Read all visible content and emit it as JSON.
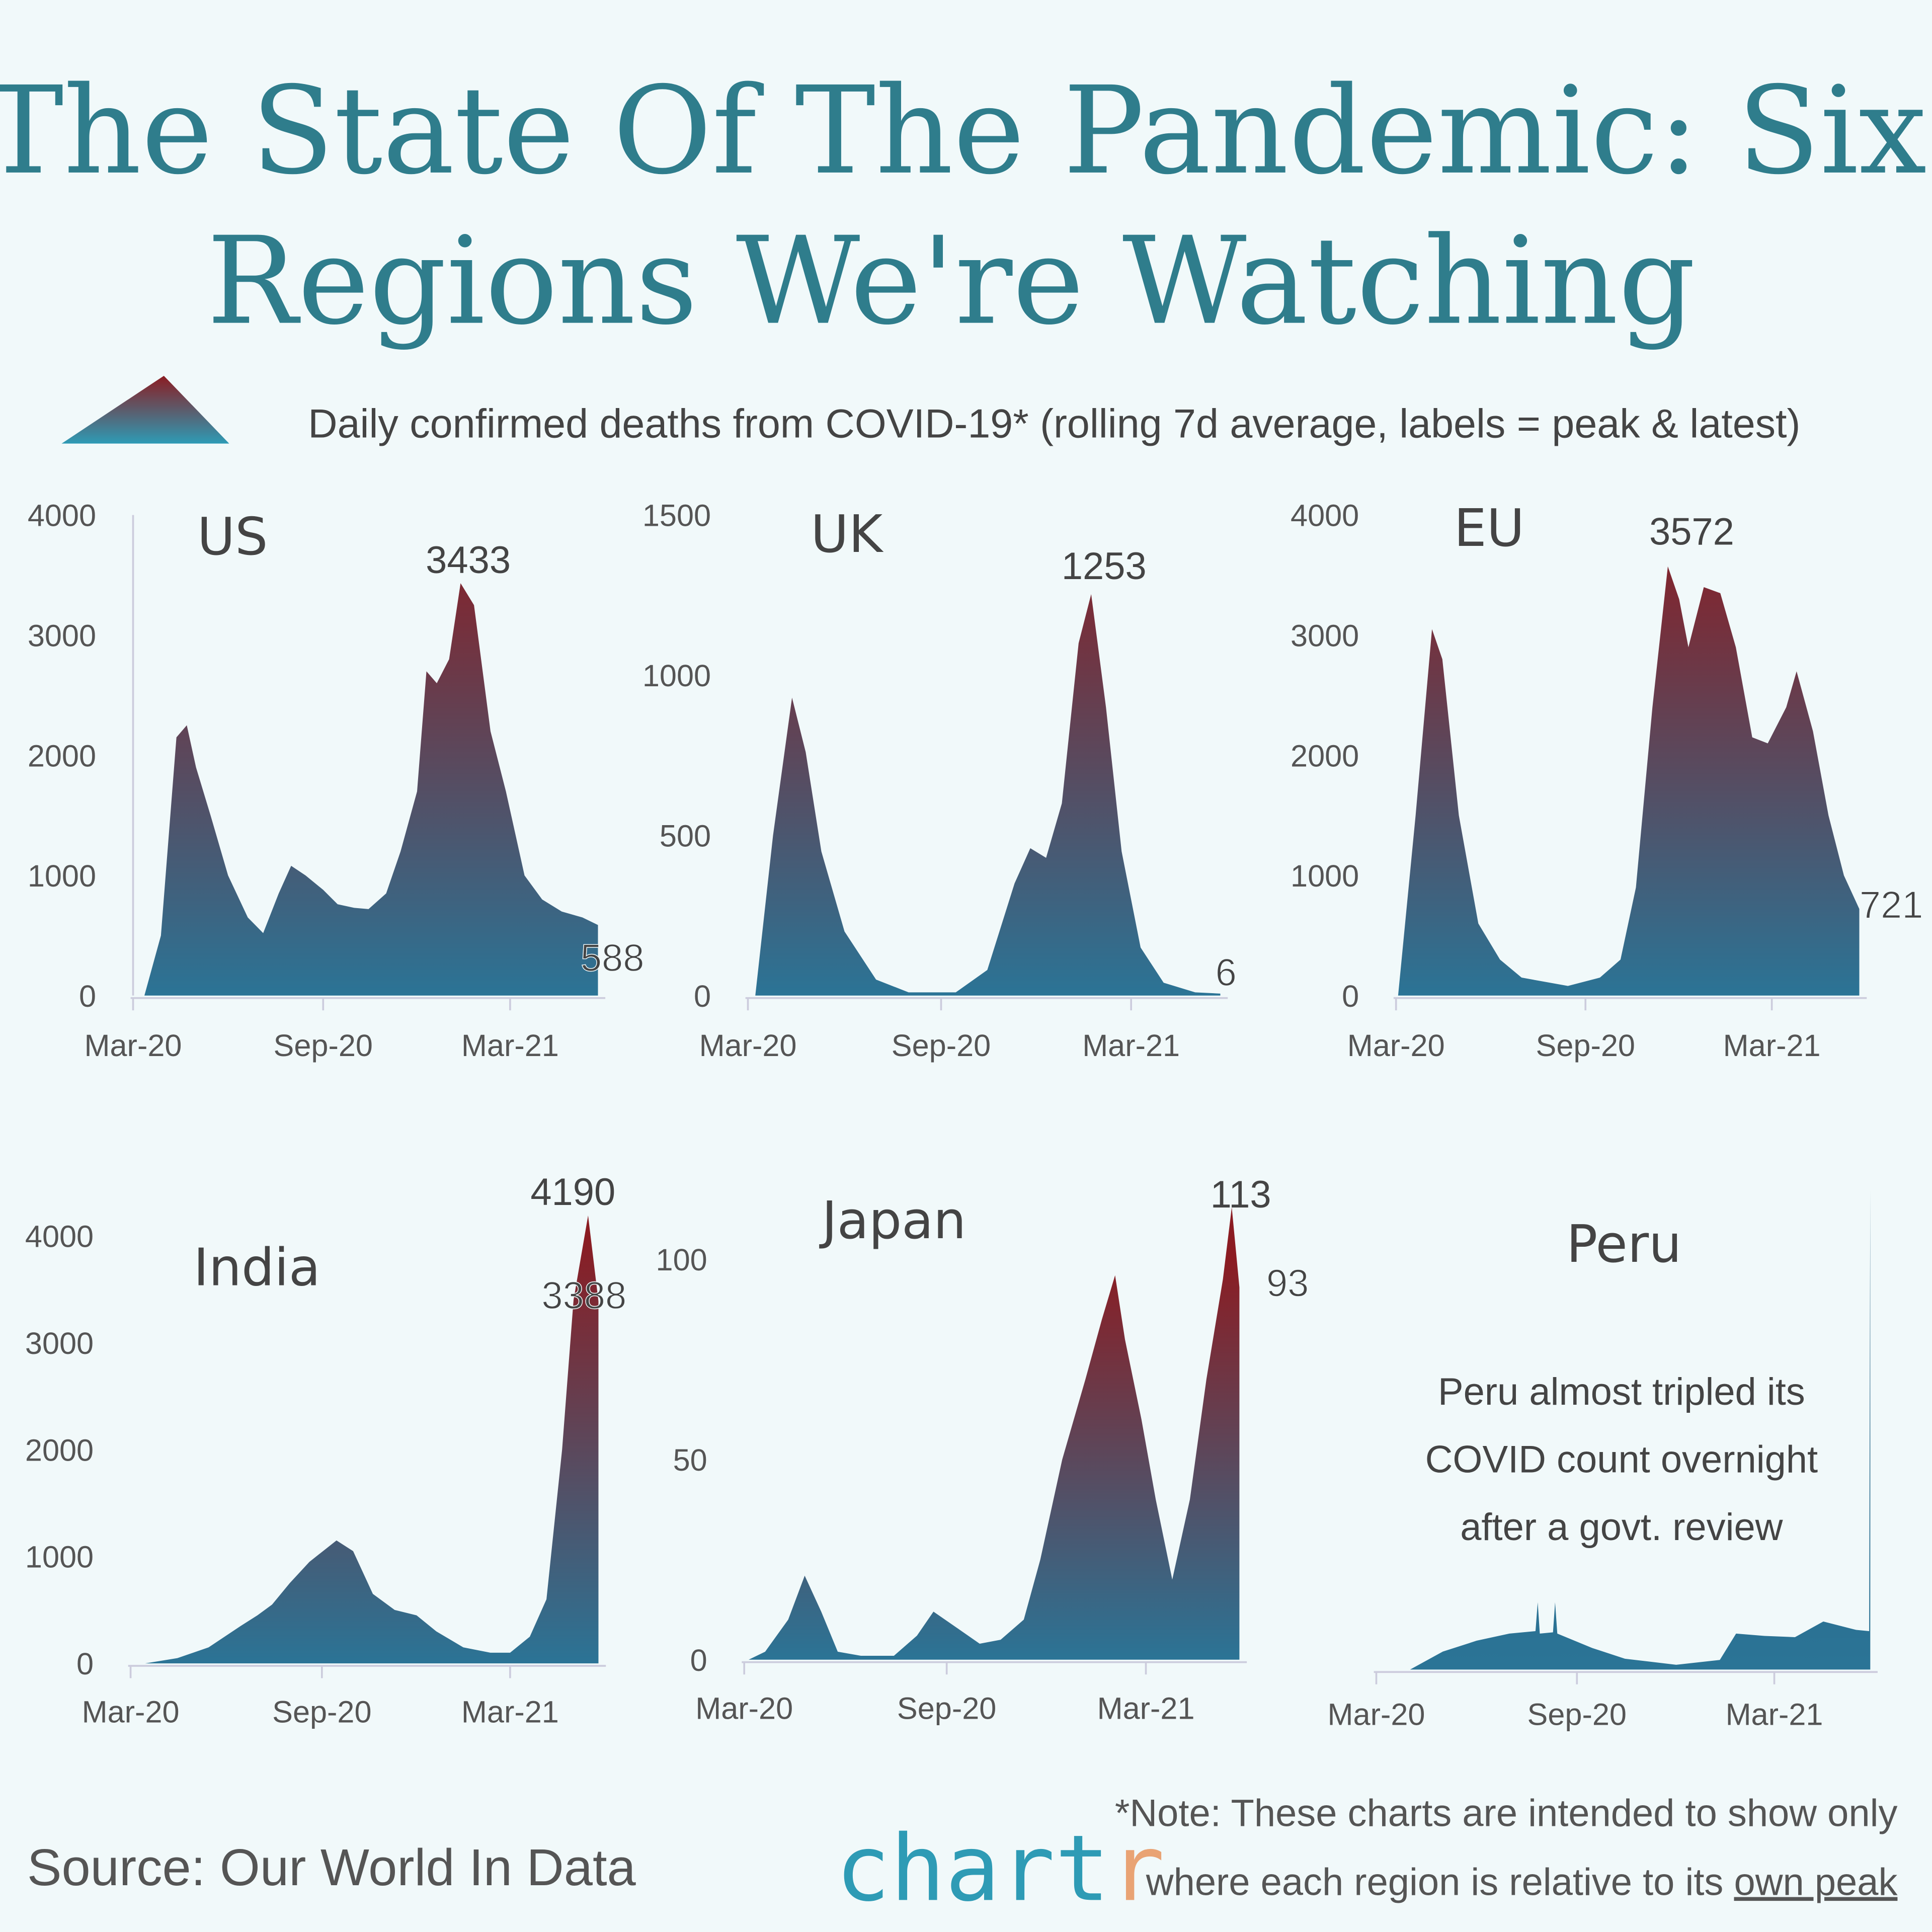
{
  "title_line1": "The State Of The Pandemic: Six",
  "title_line2": "Regions We're Watching",
  "subtitle": "Daily confirmed deaths from COVID-19* (rolling 7d average, labels = peak & latest)",
  "colors": {
    "background": "#f1f9fa",
    "gradient_top": "#8b1c22",
    "gradient_bottom": "#2b7496",
    "title": "#2f7d8c",
    "logo_teal": "#2e9bb5",
    "logo_orange": "#e9a374"
  },
  "footer": {
    "source": "Source: Our World In Data",
    "logo_main": "chart",
    "logo_tail": "r",
    "note_line1": "*Note: These charts are intended to show only",
    "note_line2_a": "where each region is relative to its ",
    "note_line2_b": "own peak"
  },
  "chart_data": [
    {
      "type": "area",
      "title": "US",
      "xticks": [
        "Mar-20",
        "Sep-20",
        "Mar-21"
      ],
      "yticks": [
        0,
        1000,
        2000,
        3000,
        4000
      ],
      "ylim": [
        0,
        4000
      ],
      "labels": {
        "peak": "3433",
        "latest": "588"
      },
      "points": [
        [
          "2020-03-12",
          0
        ],
        [
          "2020-03-28",
          500
        ],
        [
          "2020-04-12",
          2150
        ],
        [
          "2020-04-22",
          2250
        ],
        [
          "2020-05-01",
          1900
        ],
        [
          "2020-05-15",
          1500
        ],
        [
          "2020-06-01",
          1000
        ],
        [
          "2020-06-20",
          650
        ],
        [
          "2020-07-05",
          520
        ],
        [
          "2020-07-20",
          850
        ],
        [
          "2020-08-01",
          1080
        ],
        [
          "2020-08-15",
          1000
        ],
        [
          "2020-09-01",
          880
        ],
        [
          "2020-09-15",
          760
        ],
        [
          "2020-10-01",
          730
        ],
        [
          "2020-10-15",
          720
        ],
        [
          "2020-11-01",
          850
        ],
        [
          "2020-11-15",
          1200
        ],
        [
          "2020-12-01",
          1700
        ],
        [
          "2020-12-10",
          2700
        ],
        [
          "2020-12-20",
          2600
        ],
        [
          "2021-01-01",
          2800
        ],
        [
          "2021-01-12",
          3433
        ],
        [
          "2021-01-25",
          3250
        ],
        [
          "2021-02-10",
          2200
        ],
        [
          "2021-02-25",
          1700
        ],
        [
          "2021-03-15",
          1000
        ],
        [
          "2021-04-01",
          800
        ],
        [
          "2021-04-20",
          700
        ],
        [
          "2021-05-10",
          650
        ],
        [
          "2021-05-25",
          588
        ]
      ]
    },
    {
      "type": "area",
      "title": "UK",
      "xticks": [
        "Mar-20",
        "Sep-20",
        "Mar-21"
      ],
      "yticks": [
        0,
        500,
        1000,
        1500
      ],
      "ylim": [
        0,
        1500
      ],
      "labels": {
        "peak": "1253",
        "latest": "6"
      },
      "points": [
        [
          "2020-03-08",
          0
        ],
        [
          "2020-03-25",
          500
        ],
        [
          "2020-04-12",
          930
        ],
        [
          "2020-04-25",
          760
        ],
        [
          "2020-05-10",
          450
        ],
        [
          "2020-06-01",
          200
        ],
        [
          "2020-07-01",
          50
        ],
        [
          "2020-08-01",
          10
        ],
        [
          "2020-09-15",
          10
        ],
        [
          "2020-10-15",
          80
        ],
        [
          "2020-11-10",
          350
        ],
        [
          "2020-11-25",
          460
        ],
        [
          "2020-12-10",
          430
        ],
        [
          "2020-12-25",
          600
        ],
        [
          "2021-01-10",
          1100
        ],
        [
          "2021-01-22",
          1253
        ],
        [
          "2021-02-05",
          900
        ],
        [
          "2021-02-20",
          450
        ],
        [
          "2021-03-10",
          150
        ],
        [
          "2021-04-01",
          40
        ],
        [
          "2021-05-01",
          10
        ],
        [
          "2021-05-25",
          6
        ]
      ]
    },
    {
      "type": "area",
      "title": "EU",
      "xticks": [
        "Mar-20",
        "Sep-20",
        "Mar-21"
      ],
      "yticks": [
        0,
        1000,
        2000,
        3000,
        4000
      ],
      "ylim": [
        0,
        4000
      ],
      "labels": {
        "peak": "3572",
        "latest": "721"
      },
      "points": [
        [
          "2020-03-03",
          0
        ],
        [
          "2020-03-20",
          1500
        ],
        [
          "2020-04-05",
          3050
        ],
        [
          "2020-04-15",
          2800
        ],
        [
          "2020-05-01",
          1500
        ],
        [
          "2020-05-20",
          600
        ],
        [
          "2020-06-10",
          300
        ],
        [
          "2020-07-01",
          150
        ],
        [
          "2020-08-15",
          80
        ],
        [
          "2020-09-15",
          150
        ],
        [
          "2020-10-05",
          300
        ],
        [
          "2020-10-20",
          900
        ],
        [
          "2020-11-05",
          2400
        ],
        [
          "2020-11-20",
          3572
        ],
        [
          "2020-12-01",
          3300
        ],
        [
          "2020-12-10",
          2900
        ],
        [
          "2020-12-25",
          3400
        ],
        [
          "2021-01-10",
          3350
        ],
        [
          "2021-01-25",
          2900
        ],
        [
          "2021-02-10",
          2150
        ],
        [
          "2021-02-25",
          2100
        ],
        [
          "2021-03-15",
          2400
        ],
        [
          "2021-03-25",
          2700
        ],
        [
          "2021-04-10",
          2200
        ],
        [
          "2021-04-25",
          1500
        ],
        [
          "2021-05-10",
          1000
        ],
        [
          "2021-05-25",
          721
        ]
      ]
    },
    {
      "type": "area",
      "title": "India",
      "xticks": [
        "Mar-20",
        "Sep-20",
        "Mar-21"
      ],
      "yticks": [
        0,
        1000,
        2000,
        3000,
        4000
      ],
      "ylim": [
        0,
        4000
      ],
      "labels": {
        "peak": "4190",
        "latest": "3388"
      },
      "points": [
        [
          "2020-03-15",
          0
        ],
        [
          "2020-04-15",
          50
        ],
        [
          "2020-05-15",
          150
        ],
        [
          "2020-06-15",
          350
        ],
        [
          "2020-07-01",
          450
        ],
        [
          "2020-07-15",
          550
        ],
        [
          "2020-08-01",
          750
        ],
        [
          "2020-08-20",
          950
        ],
        [
          "2020-09-15",
          1150
        ],
        [
          "2020-10-01",
          1050
        ],
        [
          "2020-10-20",
          650
        ],
        [
          "2020-11-10",
          500
        ],
        [
          "2020-12-01",
          450
        ],
        [
          "2020-12-20",
          300
        ],
        [
          "2021-01-15",
          150
        ],
        [
          "2021-02-10",
          100
        ],
        [
          "2021-03-01",
          100
        ],
        [
          "2021-03-20",
          250
        ],
        [
          "2021-04-05",
          600
        ],
        [
          "2021-04-20",
          2000
        ],
        [
          "2021-05-01",
          3400
        ],
        [
          "2021-05-15",
          4190
        ],
        [
          "2021-05-25",
          3388
        ]
      ]
    },
    {
      "type": "area",
      "title": "Japan",
      "xticks": [
        "Mar-20",
        "Sep-20",
        "Mar-21"
      ],
      "yticks": [
        0,
        50,
        100
      ],
      "ylim": [
        0,
        100
      ],
      "labels": {
        "peak": "113",
        "latest": "93"
      },
      "points": [
        [
          "2020-03-05",
          0
        ],
        [
          "2020-03-20",
          2
        ],
        [
          "2020-04-10",
          10
        ],
        [
          "2020-04-25",
          21
        ],
        [
          "2020-05-10",
          12
        ],
        [
          "2020-05-25",
          2
        ],
        [
          "2020-06-15",
          1
        ],
        [
          "2020-07-15",
          1
        ],
        [
          "2020-08-05",
          6
        ],
        [
          "2020-08-20",
          12
        ],
        [
          "2020-09-10",
          8
        ],
        [
          "2020-10-01",
          4
        ],
        [
          "2020-10-20",
          5
        ],
        [
          "2020-11-10",
          10
        ],
        [
          "2020-11-25",
          25
        ],
        [
          "2020-12-15",
          50
        ],
        [
          "2021-01-05",
          70
        ],
        [
          "2021-01-20",
          85
        ],
        [
          "2021-02-01",
          96
        ],
        [
          "2021-02-10",
          80
        ],
        [
          "2021-02-25",
          60
        ],
        [
          "2021-03-10",
          40
        ],
        [
          "2021-03-25",
          20
        ],
        [
          "2021-04-10",
          40
        ],
        [
          "2021-04-25",
          70
        ],
        [
          "2021-05-10",
          95
        ],
        [
          "2021-05-18",
          113
        ],
        [
          "2021-05-25",
          93
        ]
      ]
    },
    {
      "type": "area",
      "title": "Peru",
      "xticks": [
        "Mar-20",
        "Sep-20",
        "Mar-21"
      ],
      "yticks": [],
      "ylim": [
        0,
        4000
      ],
      "annotation": [
        "Peru almost tripled its",
        "COVID count overnight",
        "after a govt. review"
      ],
      "points": [
        [
          "2020-04-01",
          0
        ],
        [
          "2020-05-01",
          150
        ],
        [
          "2020-06-01",
          240
        ],
        [
          "2020-07-01",
          300
        ],
        [
          "2020-07-25",
          320
        ],
        [
          "2020-07-27",
          560
        ],
        [
          "2020-07-29",
          300
        ],
        [
          "2020-08-10",
          310
        ],
        [
          "2020-08-12",
          560
        ],
        [
          "2020-08-14",
          300
        ],
        [
          "2020-09-15",
          180
        ],
        [
          "2020-10-15",
          90
        ],
        [
          "2020-12-01",
          40
        ],
        [
          "2021-01-10",
          80
        ],
        [
          "2021-01-25",
          300
        ],
        [
          "2021-02-20",
          280
        ],
        [
          "2021-03-20",
          270
        ],
        [
          "2021-04-15",
          400
        ],
        [
          "2021-05-15",
          330
        ],
        [
          "2021-05-27",
          320
        ],
        [
          "2021-05-28",
          4000
        ]
      ]
    }
  ]
}
